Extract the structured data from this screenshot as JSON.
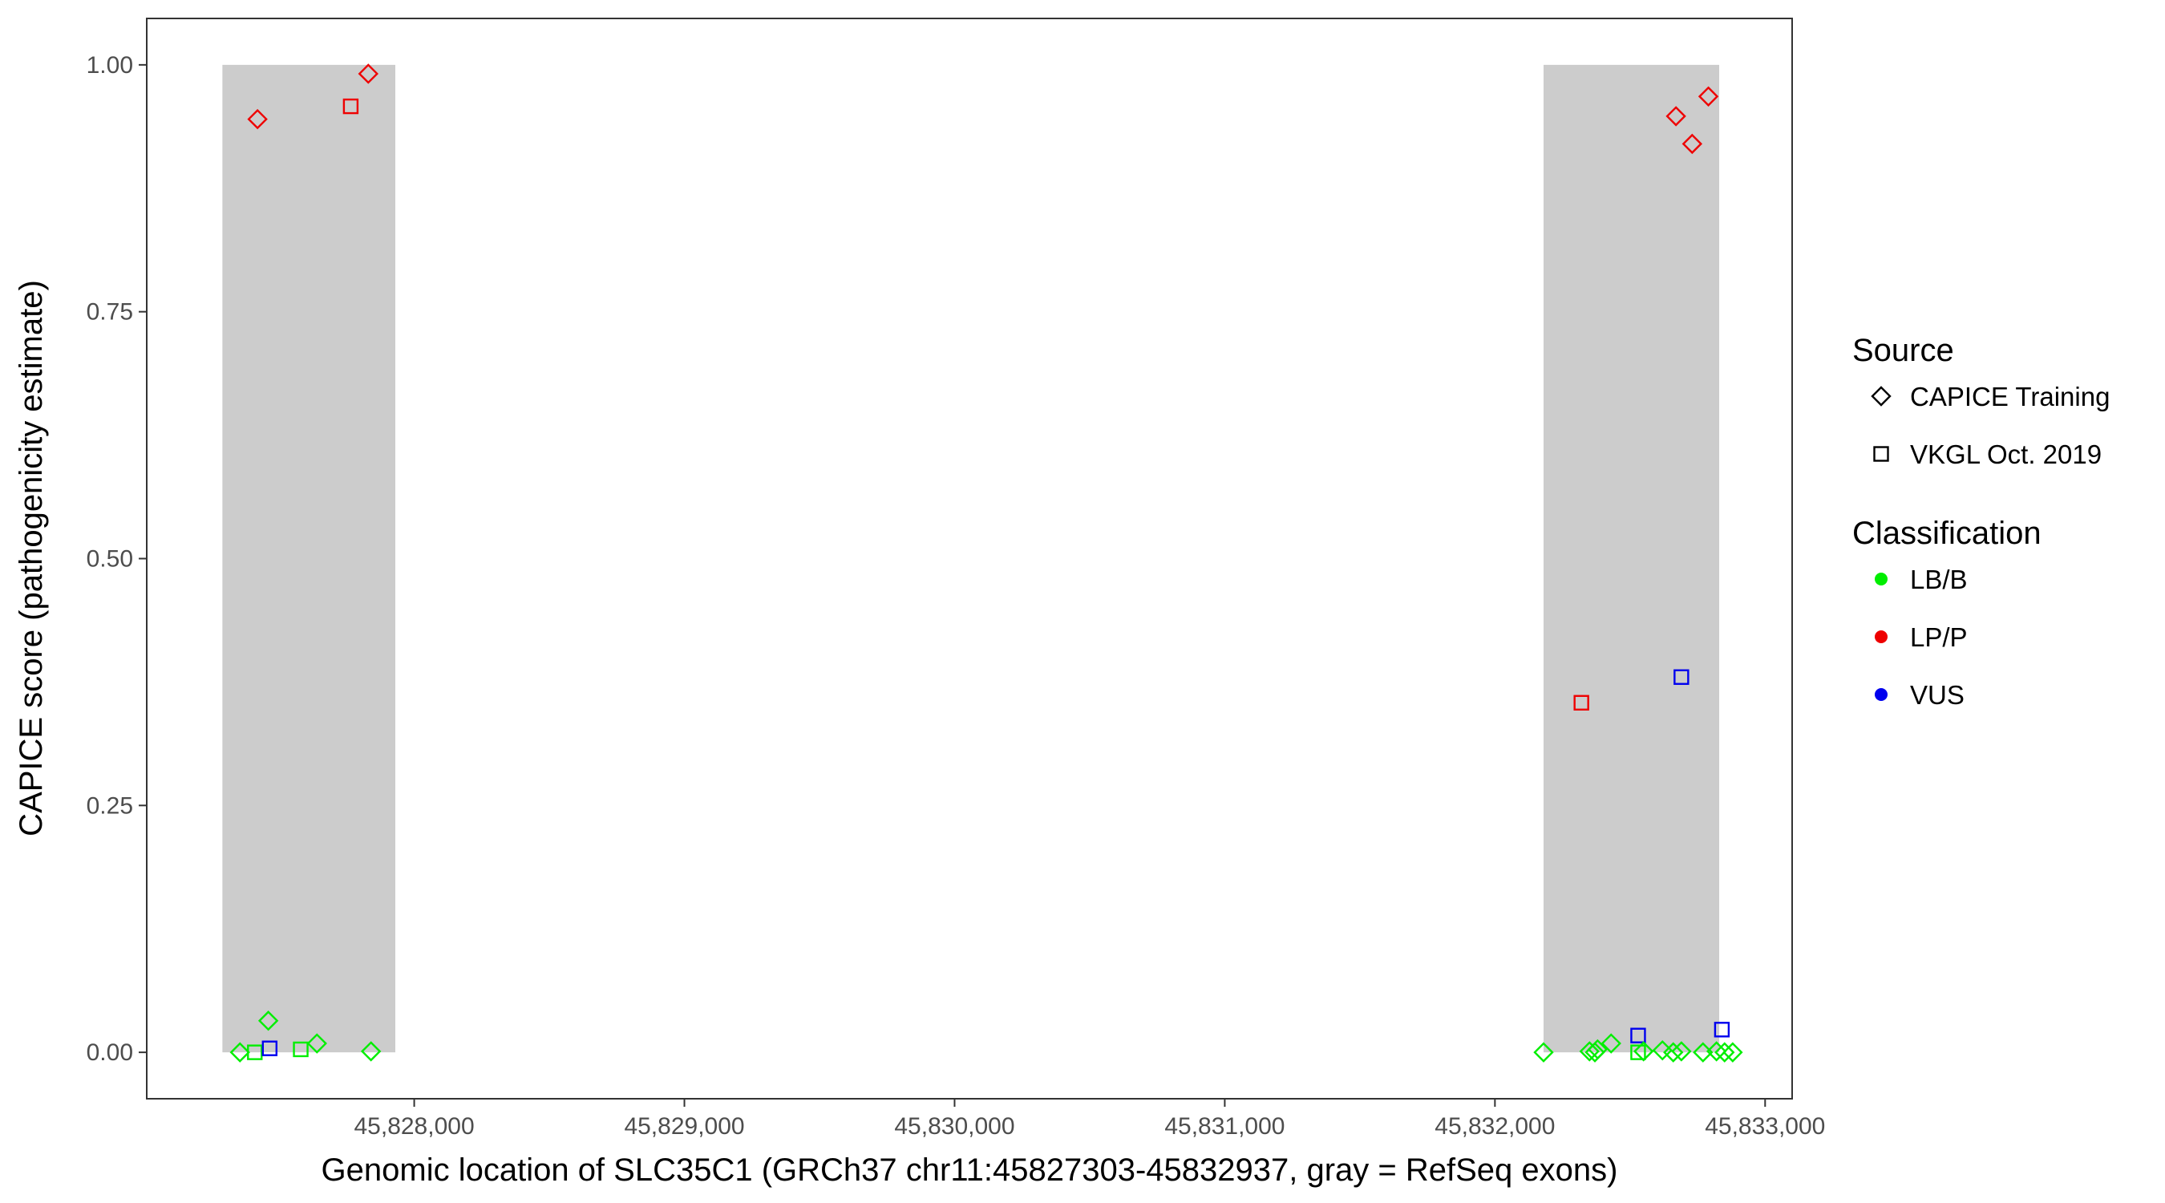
{
  "chart_data": {
    "type": "scatter",
    "title": "",
    "xlabel": "Genomic location of SLC35C1 (GRCh37 chr11:45827303-45832937, gray = RefSeq exons)",
    "ylabel": "CAPICE score (pathogenicity estimate)",
    "xlim": [
      45827010,
      45833100
    ],
    "ylim": [
      -0.047,
      1.047
    ],
    "x_ticks": [
      45828000,
      45829000,
      45830000,
      45831000,
      45832000,
      45833000
    ],
    "x_tick_labels": [
      "45,828,000",
      "45,829,000",
      "45,830,000",
      "45,831,000",
      "45,832,000",
      "45,833,000"
    ],
    "y_ticks": [
      0,
      0.25,
      0.5,
      0.75,
      1.0
    ],
    "y_tick_labels": [
      "0.00",
      "0.25",
      "0.50",
      "0.75",
      "1.00"
    ],
    "grid": false,
    "exons": [
      {
        "start": 45827290,
        "end": 45827930
      },
      {
        "start": 45832180,
        "end": 45832830
      }
    ],
    "exon_color": "#cccccc",
    "legend_position": "right",
    "legends": [
      {
        "title": "Source",
        "entries": [
          {
            "label": "CAPICE Training",
            "shape": "diamond"
          },
          {
            "label": "VKGL Oct. 2019",
            "shape": "square"
          }
        ]
      },
      {
        "title": "Classification",
        "entries": [
          {
            "label": "LB/B",
            "color": "#00ee00"
          },
          {
            "label": "LP/P",
            "color": "#ee0000"
          },
          {
            "label": "VUS",
            "color": "#0000ee"
          }
        ]
      }
    ],
    "points": [
      {
        "x": 45827420,
        "y": 0.945,
        "source": "CAPICE Training",
        "class": "LP/P"
      },
      {
        "x": 45827765,
        "y": 0.958,
        "source": "VKGL Oct. 2019",
        "class": "LP/P"
      },
      {
        "x": 45827830,
        "y": 0.991,
        "source": "CAPICE Training",
        "class": "LP/P"
      },
      {
        "x": 45827460,
        "y": 0.032,
        "source": "CAPICE Training",
        "class": "LB/B"
      },
      {
        "x": 45827355,
        "y": 0.0,
        "source": "CAPICE Training",
        "class": "LB/B"
      },
      {
        "x": 45827410,
        "y": 0.0,
        "source": "VKGL Oct. 2019",
        "class": "LB/B"
      },
      {
        "x": 45827465,
        "y": 0.004,
        "source": "VKGL Oct. 2019",
        "class": "VUS"
      },
      {
        "x": 45827580,
        "y": 0.003,
        "source": "VKGL Oct. 2019",
        "class": "LB/B"
      },
      {
        "x": 45827640,
        "y": 0.009,
        "source": "CAPICE Training",
        "class": "LB/B"
      },
      {
        "x": 45827840,
        "y": 0.001,
        "source": "CAPICE Training",
        "class": "LB/B"
      },
      {
        "x": 45832670,
        "y": 0.948,
        "source": "CAPICE Training",
        "class": "LP/P"
      },
      {
        "x": 45832730,
        "y": 0.92,
        "source": "CAPICE Training",
        "class": "LP/P"
      },
      {
        "x": 45832790,
        "y": 0.968,
        "source": "CAPICE Training",
        "class": "LP/P"
      },
      {
        "x": 45832320,
        "y": 0.354,
        "source": "VKGL Oct. 2019",
        "class": "LP/P"
      },
      {
        "x": 45832690,
        "y": 0.38,
        "source": "VKGL Oct. 2019",
        "class": "VUS"
      },
      {
        "x": 45832530,
        "y": 0.017,
        "source": "VKGL Oct. 2019",
        "class": "VUS"
      },
      {
        "x": 45832840,
        "y": 0.023,
        "source": "VKGL Oct. 2019",
        "class": "VUS"
      },
      {
        "x": 45832180,
        "y": 0.0,
        "source": "CAPICE Training",
        "class": "LB/B"
      },
      {
        "x": 45832350,
        "y": 0.001,
        "source": "CAPICE Training",
        "class": "LB/B"
      },
      {
        "x": 45832370,
        "y": 0.0,
        "source": "CAPICE Training",
        "class": "LB/B"
      },
      {
        "x": 45832380,
        "y": 0.003,
        "source": "CAPICE Training",
        "class": "LB/B"
      },
      {
        "x": 45832430,
        "y": 0.009,
        "source": "CAPICE Training",
        "class": "LB/B"
      },
      {
        "x": 45832530,
        "y": 0.0,
        "source": "VKGL Oct. 2019",
        "class": "LB/B"
      },
      {
        "x": 45832550,
        "y": 0.001,
        "source": "CAPICE Training",
        "class": "LB/B"
      },
      {
        "x": 45832620,
        "y": 0.002,
        "source": "CAPICE Training",
        "class": "LB/B"
      },
      {
        "x": 45832660,
        "y": 0.0,
        "source": "CAPICE Training",
        "class": "LB/B"
      },
      {
        "x": 45832690,
        "y": 0.001,
        "source": "CAPICE Training",
        "class": "LB/B"
      },
      {
        "x": 45832770,
        "y": 0.0,
        "source": "CAPICE Training",
        "class": "LB/B"
      },
      {
        "x": 45832820,
        "y": 0.001,
        "source": "CAPICE Training",
        "class": "LB/B"
      },
      {
        "x": 45832850,
        "y": 0.0,
        "source": "CAPICE Training",
        "class": "LB/B"
      },
      {
        "x": 45832880,
        "y": 0.0,
        "source": "CAPICE Training",
        "class": "LB/B"
      }
    ]
  }
}
